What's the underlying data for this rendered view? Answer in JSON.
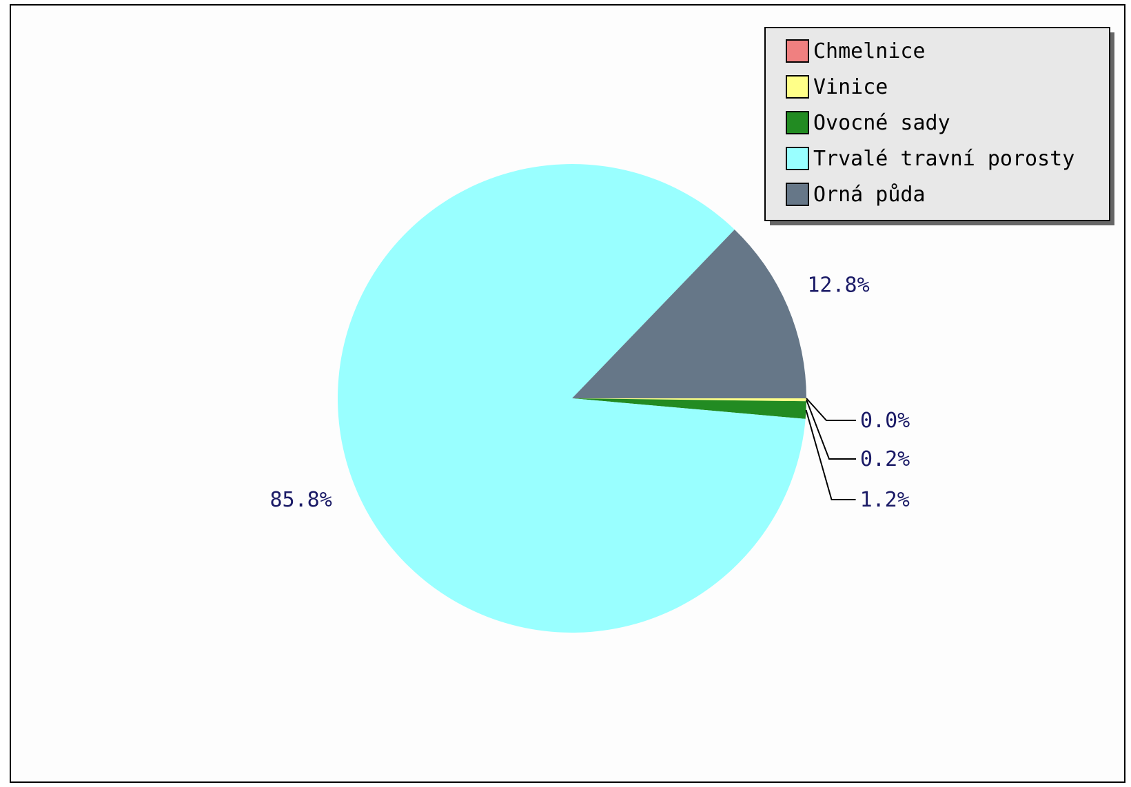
{
  "chart_data": {
    "type": "pie",
    "title": "",
    "legend_position": "top-right",
    "series": [
      {
        "name": "Chmelnice",
        "value": 0.0,
        "label": "0.0%",
        "color": "#f08080"
      },
      {
        "name": "Vinice",
        "value": 0.2,
        "label": "0.2%",
        "color": "#ffff88"
      },
      {
        "name": "Ovocné sady",
        "value": 1.2,
        "label": "1.2%",
        "color": "#228b22"
      },
      {
        "name": "Trvalé travní porosty",
        "value": 85.8,
        "label": "85.8%",
        "color": "#99ffff"
      },
      {
        "name": "Orná půda",
        "value": 12.8,
        "label": "12.8%",
        "color": "#667788"
      }
    ],
    "legend_background": "#e8e8e8",
    "label_color": "#1a1a66"
  }
}
